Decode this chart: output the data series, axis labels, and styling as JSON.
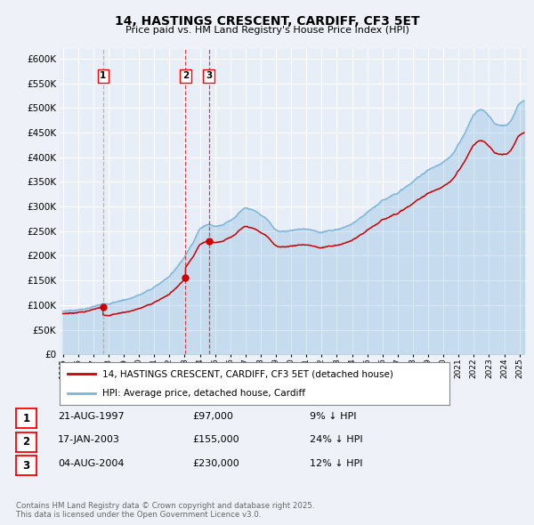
{
  "title1": "14, HASTINGS CRESCENT, CARDIFF, CF3 5ET",
  "title2": "Price paid vs. HM Land Registry's House Price Index (HPI)",
  "ylabel_ticks": [
    "£0",
    "£50K",
    "£100K",
    "£150K",
    "£200K",
    "£250K",
    "£300K",
    "£350K",
    "£400K",
    "£450K",
    "£500K",
    "£550K",
    "£600K"
  ],
  "ytick_vals": [
    0,
    50000,
    100000,
    150000,
    200000,
    250000,
    300000,
    350000,
    400000,
    450000,
    500000,
    550000,
    600000
  ],
  "xlim_start": 1994.8,
  "xlim_end": 2025.5,
  "ylim_min": 0,
  "ylim_max": 620000,
  "sale_dates": [
    1997.64,
    2003.05,
    2004.59
  ],
  "sale_prices": [
    97000,
    155000,
    230000
  ],
  "sale_labels": [
    "1",
    "2",
    "3"
  ],
  "legend_line1": "14, HASTINGS CRESCENT, CARDIFF, CF3 5ET (detached house)",
  "legend_line2": "HPI: Average price, detached house, Cardiff",
  "table_rows": [
    {
      "num": "1",
      "date": "21-AUG-1997",
      "price": "£97,000",
      "hpi": "9% ↓ HPI"
    },
    {
      "num": "2",
      "date": "17-JAN-2003",
      "price": "£155,000",
      "hpi": "24% ↓ HPI"
    },
    {
      "num": "3",
      "date": "04-AUG-2004",
      "price": "£230,000",
      "hpi": "12% ↓ HPI"
    }
  ],
  "footer": "Contains HM Land Registry data © Crown copyright and database right 2025.\nThis data is licensed under the Open Government Licence v3.0.",
  "hpi_color": "#7ab5d8",
  "price_color": "#cc0000",
  "bg_color": "#eef2f8",
  "plot_bg": "#e8eef8",
  "sale1_vline_color": "#aaaaaa",
  "sale23_vline_color": "#dd2222"
}
